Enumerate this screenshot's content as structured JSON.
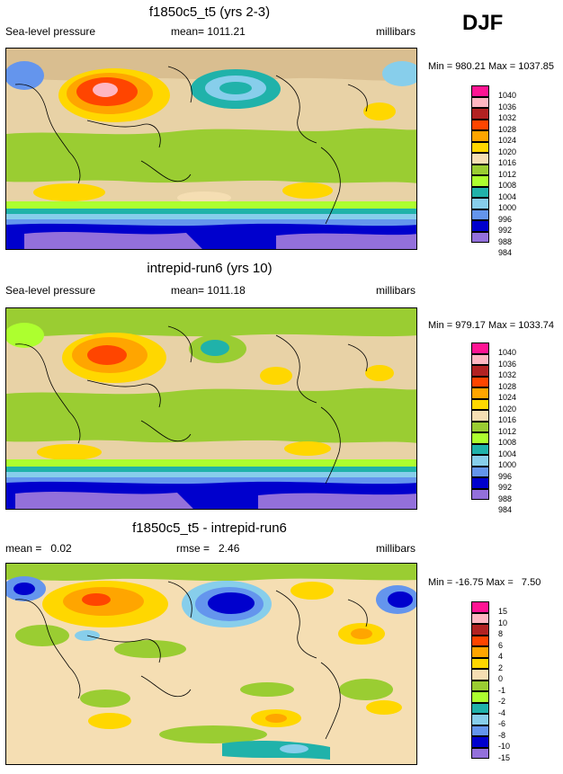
{
  "season": "DJF",
  "panels": [
    {
      "id": "model",
      "title": "f1850c5_t5 (yrs 2-3)",
      "left_label": "Sea-level pressure",
      "center_label": "mean= 1011.21",
      "right_label": "millibars",
      "minmax": "Min = 980.21 Max = 1037.85",
      "legend": {
        "colors": [
          "#ff1493",
          "#ffb6c1",
          "#b22222",
          "#ff4500",
          "#ffa500",
          "#ffd700",
          "#f5deb3",
          "#9acd32",
          "#adff2f",
          "#20b2aa",
          "#87ceeb",
          "#6495ed",
          "#0000cd",
          "#9370db"
        ],
        "labels": [
          "1040",
          "1036",
          "1032",
          "1028",
          "1024",
          "1020",
          "1016",
          "1012",
          "1008",
          "1004",
          "1000",
          "996",
          "992",
          "988",
          "984"
        ]
      }
    },
    {
      "id": "obs",
      "title": "intrepid-run6 (yrs 10)",
      "left_label": "Sea-level pressure",
      "center_label": "mean= 1011.18",
      "right_label": "millibars",
      "minmax": "Min = 979.17 Max = 1033.74",
      "legend": {
        "colors": [
          "#ff1493",
          "#ffb6c1",
          "#b22222",
          "#ff4500",
          "#ffa500",
          "#ffd700",
          "#f5deb3",
          "#9acd32",
          "#adff2f",
          "#20b2aa",
          "#87ceeb",
          "#6495ed",
          "#0000cd",
          "#9370db"
        ],
        "labels": [
          "1040",
          "1036",
          "1032",
          "1028",
          "1024",
          "1020",
          "1016",
          "1012",
          "1008",
          "1004",
          "1000",
          "996",
          "992",
          "988",
          "984"
        ]
      }
    },
    {
      "id": "diff",
      "title": "f1850c5_t5 - intrepid-run6",
      "left_label": "mean =   0.02",
      "center_label": "rmse =   2.46",
      "right_label": "millibars",
      "minmax": "Min = -16.75 Max =   7.50",
      "legend": {
        "colors": [
          "#ff1493",
          "#ffb6c1",
          "#b22222",
          "#ff4500",
          "#ffa500",
          "#ffd700",
          "#f5deb3",
          "#9acd32",
          "#adff2f",
          "#20b2aa",
          "#87ceeb",
          "#6495ed",
          "#0000cd",
          "#9370db"
        ],
        "labels": [
          "15",
          "10",
          "8",
          "6",
          "4",
          "2",
          "0",
          "-1",
          "-2",
          "-4",
          "-6",
          "-8",
          "-10",
          "-15"
        ]
      }
    }
  ]
}
